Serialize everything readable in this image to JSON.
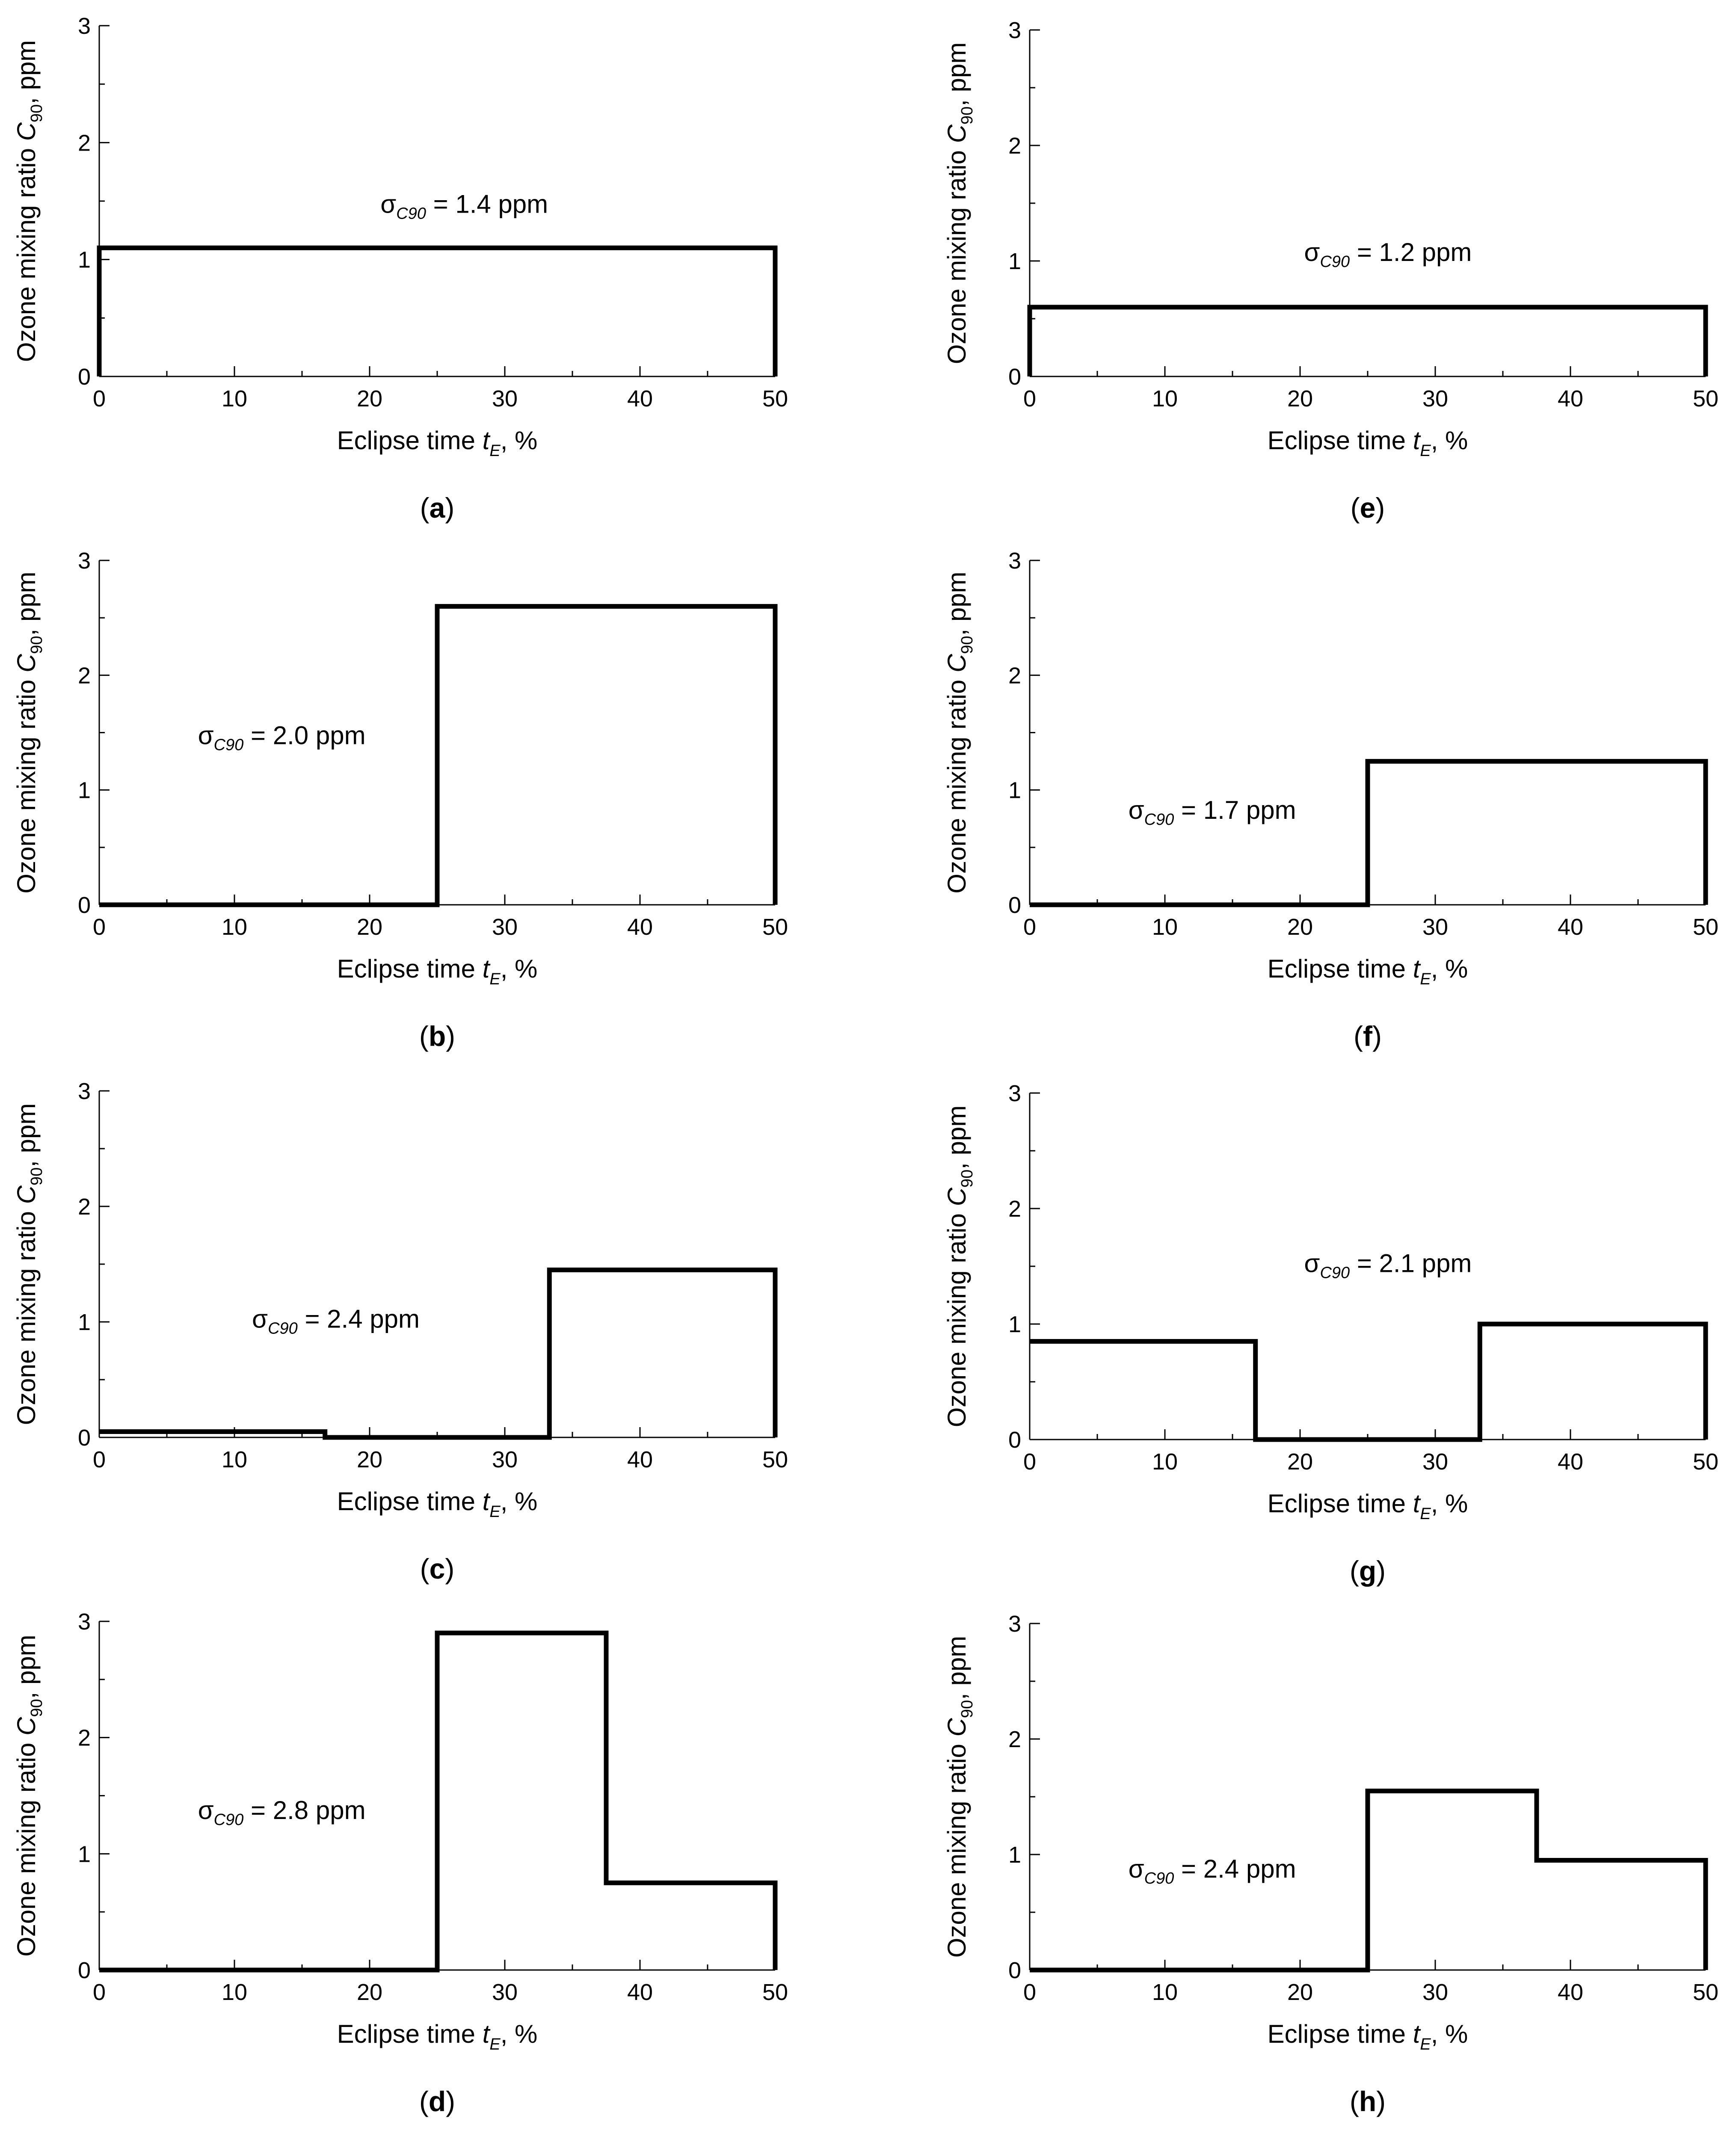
{
  "figure": {
    "colors": {
      "line": "#000000",
      "background": "#ffffff"
    },
    "axis_common": {
      "ylabel_main": "Ozone mixing ratio",
      "ylabel_symbol": "C",
      "ylabel_sub": "90",
      "ylabel_unit": ",  ppm",
      "xlabel_main": "Eclipse time",
      "xlabel_symbol": "t",
      "xlabel_sub": "E",
      "xlabel_unit": ",  %",
      "sigma_symbol": "σ",
      "sigma_sub": "C90",
      "sigma_unit": "ppm"
    }
  },
  "chart_data": [
    {
      "panel": "a",
      "type": "line",
      "step": true,
      "xlim": [
        0,
        50
      ],
      "ylim": [
        0,
        3
      ],
      "xticks": [
        0,
        10,
        20,
        30,
        40,
        50
      ],
      "yticks": [
        0,
        1,
        2,
        3
      ],
      "series": [
        {
          "name": "C90",
          "x": [
            0,
            0,
            50,
            50
          ],
          "y": [
            0,
            1.1,
            1.1,
            0
          ]
        }
      ],
      "annotation": {
        "text_value": "= 1.4",
        "x": 27,
        "y": 1.4
      },
      "caption": "a"
    },
    {
      "panel": "b",
      "type": "line",
      "step": true,
      "xlim": [
        0,
        50
      ],
      "ylim": [
        0,
        3
      ],
      "xticks": [
        0,
        10,
        20,
        30,
        40,
        50
      ],
      "yticks": [
        0,
        1,
        2,
        3
      ],
      "series": [
        {
          "name": "C90",
          "x": [
            0,
            25,
            25,
            50,
            50
          ],
          "y": [
            0,
            0,
            2.6,
            2.6,
            0
          ]
        }
      ],
      "annotation": {
        "text_value": "= 2.0",
        "x": 13.5,
        "y": 1.4
      },
      "caption": "b"
    },
    {
      "panel": "c",
      "type": "line",
      "step": true,
      "xlim": [
        0,
        50
      ],
      "ylim": [
        0,
        3
      ],
      "xticks": [
        0,
        10,
        20,
        30,
        40,
        50
      ],
      "yticks": [
        0,
        1,
        2,
        3
      ],
      "series": [
        {
          "name": "C90",
          "x": [
            0,
            16.7,
            16.7,
            33.3,
            33.3,
            50,
            50
          ],
          "y": [
            0.05,
            0.05,
            0,
            0,
            1.45,
            1.45,
            0
          ]
        }
      ],
      "annotation": {
        "text_value": "= 2.4",
        "x": 17.5,
        "y": 0.95
      },
      "caption": "c"
    },
    {
      "panel": "d",
      "type": "line",
      "step": true,
      "xlim": [
        0,
        50
      ],
      "ylim": [
        0,
        3
      ],
      "xticks": [
        0,
        10,
        20,
        30,
        40,
        50
      ],
      "yticks": [
        0,
        1,
        2,
        3
      ],
      "series": [
        {
          "name": "C90",
          "x": [
            0,
            25,
            25,
            37.5,
            37.5,
            50,
            50
          ],
          "y": [
            0,
            0,
            2.9,
            2.9,
            0.75,
            0.75,
            0
          ]
        }
      ],
      "annotation": {
        "text_value": "= 2.8",
        "x": 13.5,
        "y": 1.3
      },
      "caption": "d"
    },
    {
      "panel": "e",
      "type": "line",
      "step": true,
      "xlim": [
        0,
        50
      ],
      "ylim": [
        0,
        3
      ],
      "xticks": [
        0,
        10,
        20,
        30,
        40,
        50
      ],
      "yticks": [
        0,
        1,
        2,
        3
      ],
      "series": [
        {
          "name": "C90",
          "x": [
            0,
            0,
            50,
            50
          ],
          "y": [
            0,
            0.6,
            0.6,
            0
          ]
        }
      ],
      "annotation": {
        "text_value": "= 1.2",
        "x": 26.5,
        "y": 1.0
      },
      "caption": "e"
    },
    {
      "panel": "f",
      "type": "line",
      "step": true,
      "xlim": [
        0,
        50
      ],
      "ylim": [
        0,
        3
      ],
      "xticks": [
        0,
        10,
        20,
        30,
        40,
        50
      ],
      "yticks": [
        0,
        1,
        2,
        3
      ],
      "series": [
        {
          "name": "C90",
          "x": [
            0,
            25,
            25,
            50,
            50
          ],
          "y": [
            0,
            0,
            1.25,
            1.25,
            0
          ]
        }
      ],
      "annotation": {
        "text_value": "= 1.7",
        "x": 13.5,
        "y": 0.75
      },
      "caption": "f"
    },
    {
      "panel": "g",
      "type": "line",
      "step": true,
      "xlim": [
        0,
        50
      ],
      "ylim": [
        0,
        3
      ],
      "xticks": [
        0,
        10,
        20,
        30,
        40,
        50
      ],
      "yticks": [
        0,
        1,
        2,
        3
      ],
      "series": [
        {
          "name": "C90",
          "x": [
            0,
            16.7,
            16.7,
            33.3,
            33.3,
            50,
            50
          ],
          "y": [
            0.85,
            0.85,
            0,
            0,
            1.0,
            1.0,
            0
          ]
        }
      ],
      "annotation": {
        "text_value": "= 2.1",
        "x": 26.5,
        "y": 1.45
      },
      "caption": "g"
    },
    {
      "panel": "h",
      "type": "line",
      "step": true,
      "xlim": [
        0,
        50
      ],
      "ylim": [
        0,
        3
      ],
      "xticks": [
        0,
        10,
        20,
        30,
        40,
        50
      ],
      "yticks": [
        0,
        1,
        2,
        3
      ],
      "series": [
        {
          "name": "C90",
          "x": [
            0,
            25,
            25,
            37.5,
            37.5,
            50,
            50
          ],
          "y": [
            0,
            0,
            1.55,
            1.55,
            0.95,
            0.95,
            0
          ]
        }
      ],
      "annotation": {
        "text_value": "= 2.4",
        "x": 13.5,
        "y": 0.8
      },
      "caption": "h"
    }
  ]
}
